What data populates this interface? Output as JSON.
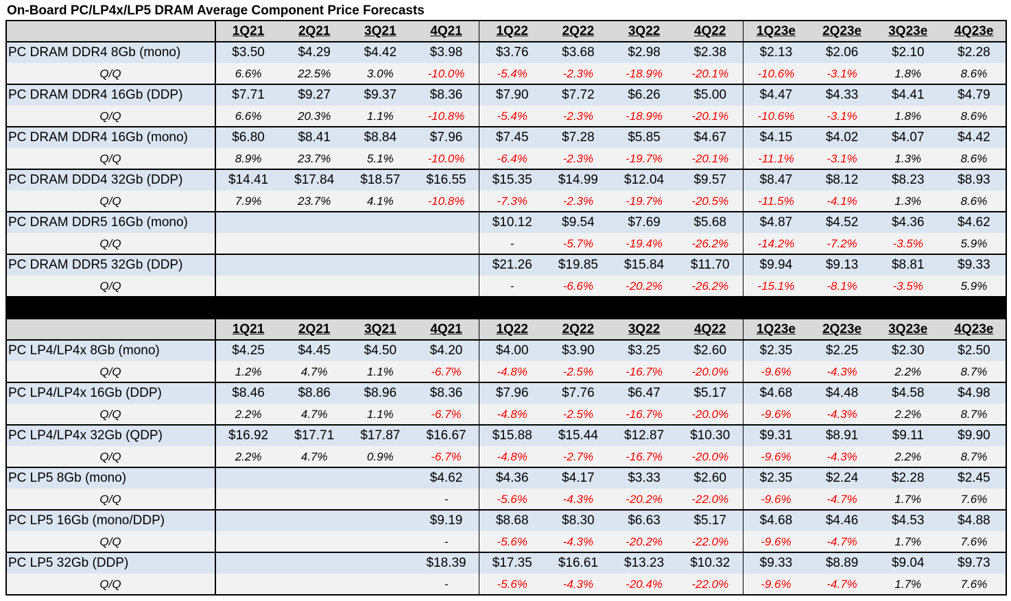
{
  "title": "On-Board PC/LP4x/LP5 DRAM Average Component Price Forecasts",
  "colors": {
    "header_bg": "#d9d9d9",
    "price_row_bg": "#dbe5f1",
    "change_row_bg": "#f2f2f2",
    "negative": "#ff0000",
    "divider": "#000000"
  },
  "chart_data": {
    "type": "table",
    "quarters": [
      "1Q21",
      "2Q21",
      "3Q21",
      "4Q21",
      "1Q22",
      "2Q22",
      "3Q22",
      "4Q22",
      "1Q23e",
      "2Q23e",
      "3Q23e",
      "4Q23e"
    ],
    "change_label": "Q/Q",
    "sections": [
      {
        "rows": [
          {
            "label": "PC DRAM DDR4 8Gb (mono)",
            "prices": [
              "$3.50",
              "$4.29",
              "$4.42",
              "$3.98",
              "$3.76",
              "$3.68",
              "$2.98",
              "$2.38",
              "$2.13",
              "$2.06",
              "$2.10",
              "$2.28"
            ],
            "changes": [
              "6.6%",
              "22.5%",
              "3.0%",
              "-10.0%",
              "-5.4%",
              "-2.3%",
              "-18.9%",
              "-20.1%",
              "-10.6%",
              "-3.1%",
              "1.8%",
              "8.6%"
            ]
          },
          {
            "label": "PC DRAM DDR4 16Gb (DDP)",
            "prices": [
              "$7.71",
              "$9.27",
              "$9.37",
              "$8.36",
              "$7.90",
              "$7.72",
              "$6.26",
              "$5.00",
              "$4.47",
              "$4.33",
              "$4.41",
              "$4.79"
            ],
            "changes": [
              "6.6%",
              "20.3%",
              "1.1%",
              "-10.8%",
              "-5.4%",
              "-2.3%",
              "-18.9%",
              "-20.1%",
              "-10.6%",
              "-3.1%",
              "1.8%",
              "8.6%"
            ]
          },
          {
            "label": "PC DRAM DDR4 16Gb (mono)",
            "prices": [
              "$6.80",
              "$8.41",
              "$8.84",
              "$7.96",
              "$7.45",
              "$7.28",
              "$5.85",
              "$4.67",
              "$4.15",
              "$4.02",
              "$4.07",
              "$4.42"
            ],
            "changes": [
              "8.9%",
              "23.7%",
              "5.1%",
              "-10.0%",
              "-6.4%",
              "-2.3%",
              "-19.7%",
              "-20.1%",
              "-11.1%",
              "-3.1%",
              "1.3%",
              "8.6%"
            ]
          },
          {
            "label": "PC DRAM DDD4 32Gb (DDP)",
            "prices": [
              "$14.41",
              "$17.84",
              "$18.57",
              "$16.55",
              "$15.35",
              "$14.99",
              "$12.04",
              "$9.57",
              "$8.47",
              "$8.12",
              "$8.23",
              "$8.93"
            ],
            "changes": [
              "7.9%",
              "23.7%",
              "4.1%",
              "-10.8%",
              "-7.3%",
              "-2.3%",
              "-19.7%",
              "-20.5%",
              "-11.5%",
              "-4.1%",
              "1.3%",
              "8.6%"
            ]
          },
          {
            "label": "PC DRAM DDR5 16Gb (mono)",
            "prices": [
              "",
              "",
              "",
              "",
              "$10.12",
              "$9.54",
              "$7.69",
              "$5.68",
              "$4.87",
              "$4.52",
              "$4.36",
              "$4.62"
            ],
            "changes": [
              "",
              "",
              "",
              "",
              "-",
              "-5.7%",
              "-19.4%",
              "-26.2%",
              "-14.2%",
              "-7.2%",
              "-3.5%",
              "5.9%"
            ]
          },
          {
            "label": "PC DRAM DDR5 32Gb (DDP)",
            "prices": [
              "",
              "",
              "",
              "",
              "$21.26",
              "$19.85",
              "$15.84",
              "$11.70",
              "$9.94",
              "$9.13",
              "$8.81",
              "$9.33"
            ],
            "changes": [
              "",
              "",
              "",
              "",
              "-",
              "-6.6%",
              "-20.2%",
              "-26.2%",
              "-15.1%",
              "-8.1%",
              "-3.5%",
              "5.9%"
            ]
          }
        ]
      },
      {
        "rows": [
          {
            "label": "PC LP4/LP4x 8Gb (mono)",
            "prices": [
              "$4.25",
              "$4.45",
              "$4.50",
              "$4.20",
              "$4.00",
              "$3.90",
              "$3.25",
              "$2.60",
              "$2.35",
              "$2.25",
              "$2.30",
              "$2.50"
            ],
            "changes": [
              "1.2%",
              "4.7%",
              "1.1%",
              "-6.7%",
              "-4.8%",
              "-2.5%",
              "-16.7%",
              "-20.0%",
              "-9.6%",
              "-4.3%",
              "2.2%",
              "8.7%"
            ]
          },
          {
            "label": "PC LP4/LP4x 16Gb (DDP)",
            "prices": [
              "$8.46",
              "$8.86",
              "$8.96",
              "$8.36",
              "$7.96",
              "$7.76",
              "$6.47",
              "$5.17",
              "$4.68",
              "$4.48",
              "$4.58",
              "$4.98"
            ],
            "changes": [
              "2.2%",
              "4.7%",
              "1.1%",
              "-6.7%",
              "-4.8%",
              "-2.5%",
              "-16.7%",
              "-20.0%",
              "-9.6%",
              "-4.3%",
              "2.2%",
              "8.7%"
            ]
          },
          {
            "label": "PC LP4/LP4x 32Gb (QDP)",
            "prices": [
              "$16.92",
              "$17.71",
              "$17.87",
              "$16.67",
              "$15.88",
              "$15.44",
              "$12.87",
              "$10.30",
              "$9.31",
              "$8.91",
              "$9.11",
              "$9.90"
            ],
            "changes": [
              "2.2%",
              "4.7%",
              "0.9%",
              "-6.7%",
              "-4.8%",
              "-2.7%",
              "-16.7%",
              "-20.0%",
              "-9.6%",
              "-4.3%",
              "2.2%",
              "8.7%"
            ]
          },
          {
            "label": "PC LP5 8Gb (mono)",
            "prices": [
              "",
              "",
              "",
              "$4.62",
              "$4.36",
              "$4.17",
              "$3.33",
              "$2.60",
              "$2.35",
              "$2.24",
              "$2.28",
              "$2.45"
            ],
            "changes": [
              "",
              "",
              "",
              "-",
              "-5.6%",
              "-4.3%",
              "-20.2%",
              "-22.0%",
              "-9.6%",
              "-4.7%",
              "1.7%",
              "7.6%"
            ]
          },
          {
            "label": "PC LP5 16Gb (mono/DDP)",
            "prices": [
              "",
              "",
              "",
              "$9.19",
              "$8.68",
              "$8.30",
              "$6.63",
              "$5.17",
              "$4.68",
              "$4.46",
              "$4.53",
              "$4.88"
            ],
            "changes": [
              "",
              "",
              "",
              "-",
              "-5.6%",
              "-4.3%",
              "-20.2%",
              "-22.0%",
              "-9.6%",
              "-4.7%",
              "1.7%",
              "7.6%"
            ]
          },
          {
            "label": "PC LP5 32Gb (DDP)",
            "prices": [
              "",
              "",
              "",
              "$18.39",
              "$17.35",
              "$16.61",
              "$13.23",
              "$10.32",
              "$9.33",
              "$8.89",
              "$9.04",
              "$9.73"
            ],
            "changes": [
              "",
              "",
              "",
              "-",
              "-5.6%",
              "-4.3%",
              "-20.4%",
              "-22.0%",
              "-9.6%",
              "-4.7%",
              "1.7%",
              "7.6%"
            ]
          }
        ]
      }
    ]
  }
}
